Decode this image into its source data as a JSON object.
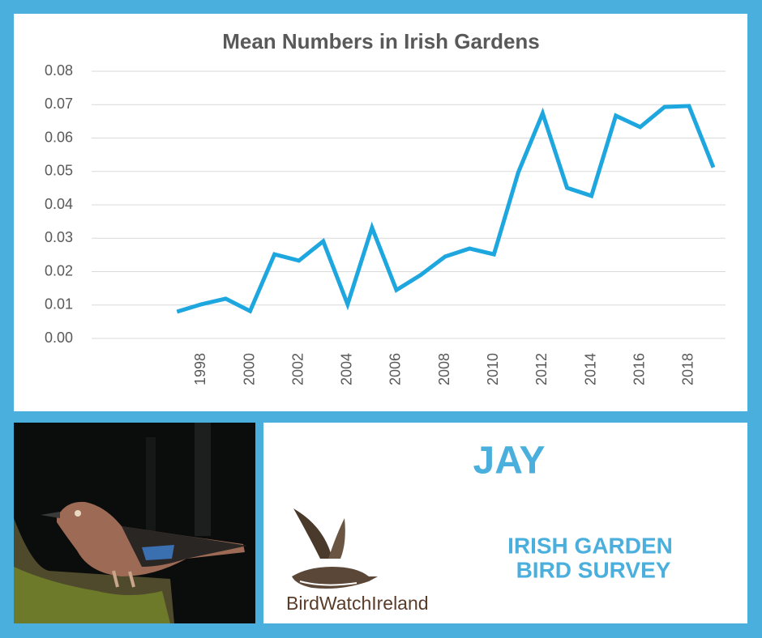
{
  "chart_data": {
    "type": "line",
    "title": "Mean Numbers in Irish Gardens",
    "x": [
      1997,
      1998,
      1999,
      2000,
      2001,
      2002,
      2003,
      2004,
      2005,
      2006,
      2007,
      2008,
      2009,
      2010,
      2011,
      2012,
      2013,
      2014,
      2015,
      2016,
      2017,
      2018,
      2019
    ],
    "values": [
      0.008,
      0.0102,
      0.0119,
      0.0082,
      0.0252,
      0.0233,
      0.0291,
      0.0102,
      0.0332,
      0.0145,
      0.019,
      0.0245,
      0.0269,
      0.0252,
      0.0497,
      0.0674,
      0.0451,
      0.0427,
      0.0667,
      0.0633,
      0.0693,
      0.0696,
      0.0512
    ],
    "color": "#1ea7df",
    "xlim": [
      1993.5,
      2019.5
    ],
    "xticks": [
      1998,
      2000,
      2002,
      2004,
      2006,
      2008,
      2010,
      2012,
      2014,
      2016,
      2018
    ],
    "ylim": [
      0,
      0.08
    ],
    "yticks": [
      {
        "value": 0,
        "label": "0.00"
      },
      {
        "value": 0.01,
        "label": "0.01"
      },
      {
        "value": 0.02,
        "label": "0.02"
      },
      {
        "value": 0.03,
        "label": "0.03"
      },
      {
        "value": 0.04,
        "label": "0.04"
      },
      {
        "value": 0.05,
        "label": "0.05"
      },
      {
        "value": 0.06,
        "label": "0.06"
      },
      {
        "value": 0.07,
        "label": "0.07"
      },
      {
        "value": 0.08,
        "label": "0.08"
      }
    ],
    "grid": true
  },
  "panel": {
    "species": "JAY",
    "survey": [
      "IRISH GARDEN",
      "BIRD SURVEY"
    ],
    "logo": "BirdWatchIreland"
  }
}
